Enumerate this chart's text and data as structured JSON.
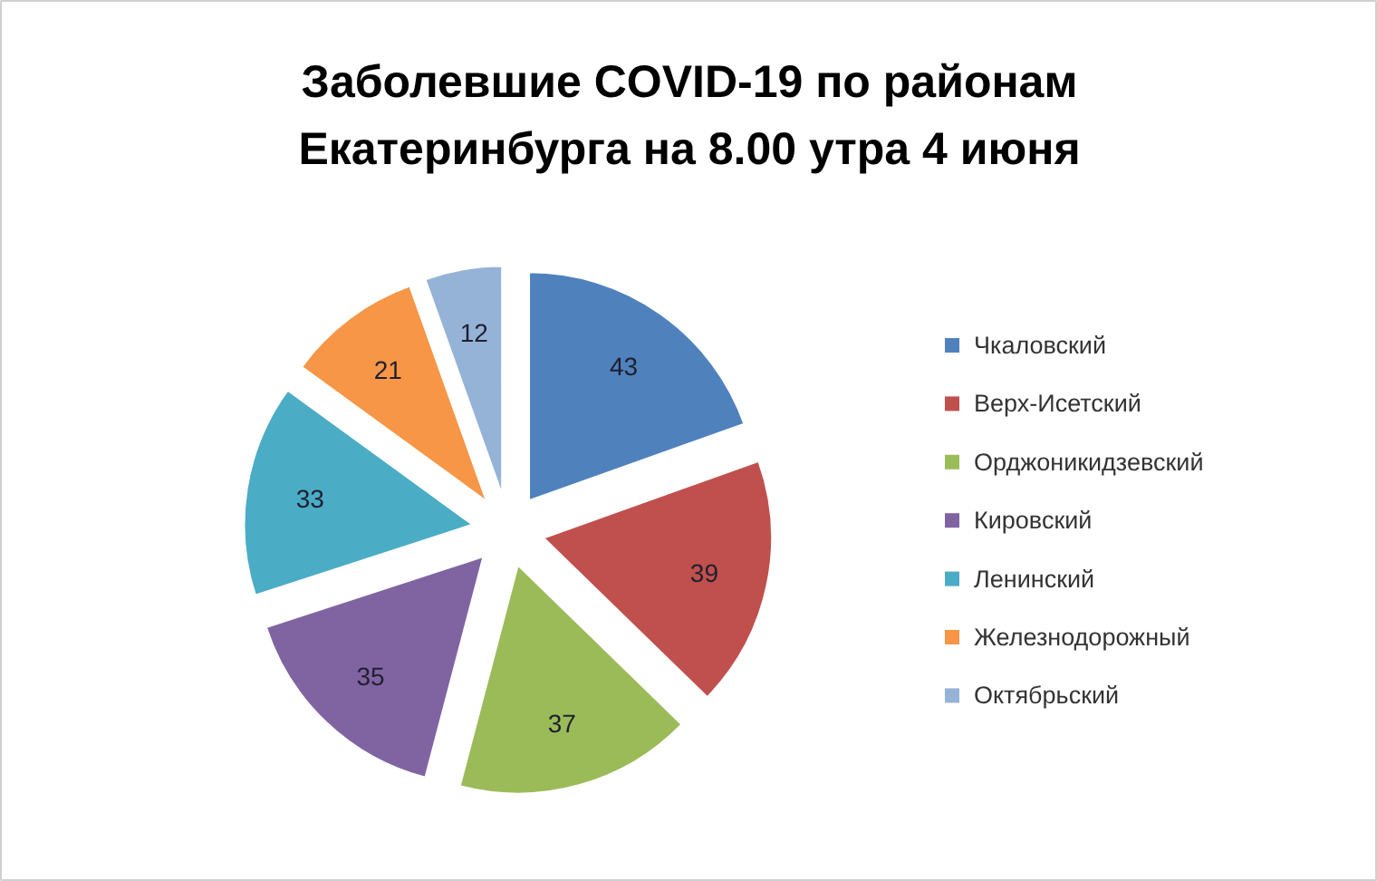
{
  "chart_data": {
    "type": "pie",
    "title": "Заболевшие COVID-19 по районам Екатеринбурга на 8.00 утра 4 июня",
    "categories": [
      "Чкаловский",
      "Верх-Исетский",
      "Орджоникидзевский",
      "Кировский",
      "Ленинский",
      "Железнодорожный",
      "Октябрьский"
    ],
    "values": [
      43,
      39,
      37,
      35,
      33,
      21,
      12
    ],
    "colors": [
      "#4f81bd",
      "#c0504d",
      "#9bbb59",
      "#8064a2",
      "#4bacc6",
      "#f79646",
      "#95b3d7"
    ],
    "data_labels": true,
    "legend": "right"
  }
}
